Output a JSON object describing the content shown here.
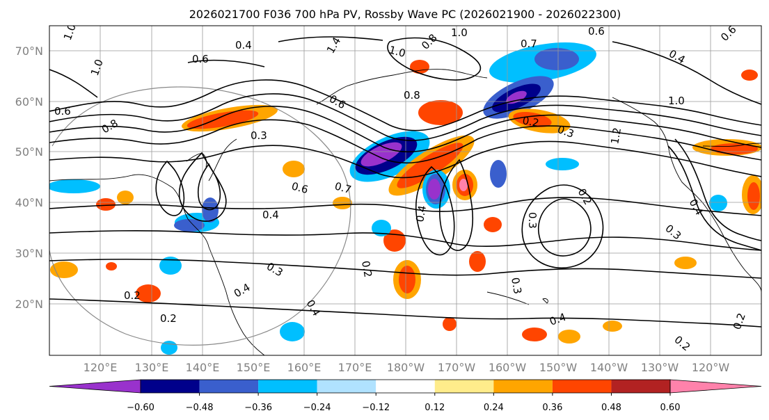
{
  "title": "2026021700 F036 700 hPa PV, Rossby Wave PC (2026021900 - 2026022300)",
  "lat_labels": [
    "70°N",
    "60°N",
    "50°N",
    "40°N",
    "30°N",
    "20°N"
  ],
  "lon_labels": [
    "120°E",
    "130°E",
    "140°E",
    "150°E",
    "160°E",
    "170°E",
    "180°W",
    "170°W",
    "160°W",
    "150°W",
    "140°W",
    "130°W",
    "120°W"
  ],
  "colorbar": {
    "colors": [
      "#9932CC",
      "#00008B",
      "#3A5FCD",
      "#00BFFF",
      "#B0E2FF",
      "#FFFFFF",
      "#FFEC8B",
      "#FFA500",
      "#FF4500",
      "#B22222",
      "#FF82AB"
    ],
    "ticks": [
      "−0.60",
      "−0.48",
      "−0.36",
      "−0.24",
      "−0.12",
      "0.12",
      "0.24",
      "0.36",
      "0.48",
      "0.60"
    ]
  },
  "contour_labels": [
    {
      "text": "1.0"
    },
    {
      "text": "1.0"
    },
    {
      "text": "0.6"
    },
    {
      "text": "0.4"
    },
    {
      "text": "1.4"
    },
    {
      "text": "1.0"
    },
    {
      "text": "0.8"
    },
    {
      "text": "1.0"
    },
    {
      "text": "0.6"
    },
    {
      "text": "0.7"
    },
    {
      "text": "0.4"
    },
    {
      "text": "0.6"
    },
    {
      "text": "1.0"
    },
    {
      "text": "0.6"
    },
    {
      "text": "0.8"
    },
    {
      "text": "0.6"
    },
    {
      "text": "0.8"
    },
    {
      "text": "0.3"
    },
    {
      "text": "0.2"
    },
    {
      "text": "0.3"
    },
    {
      "text": "0.6"
    },
    {
      "text": "0.7"
    },
    {
      "text": "0.4"
    },
    {
      "text": "0.2"
    },
    {
      "text": "0.3"
    },
    {
      "text": "0.4"
    },
    {
      "text": "0.3"
    },
    {
      "text": "0.2"
    },
    {
      "text": "0.2"
    },
    {
      "text": "0.4"
    },
    {
      "text": "0.3"
    },
    {
      "text": "0.4"
    },
    {
      "text": "0.2"
    },
    {
      "text": "1.2"
    },
    {
      "text": "0.4"
    },
    {
      "text": "0.3"
    },
    {
      "text": "0.2"
    },
    {
      "text": "0.2"
    },
    {
      "text": "0.4"
    }
  ]
}
